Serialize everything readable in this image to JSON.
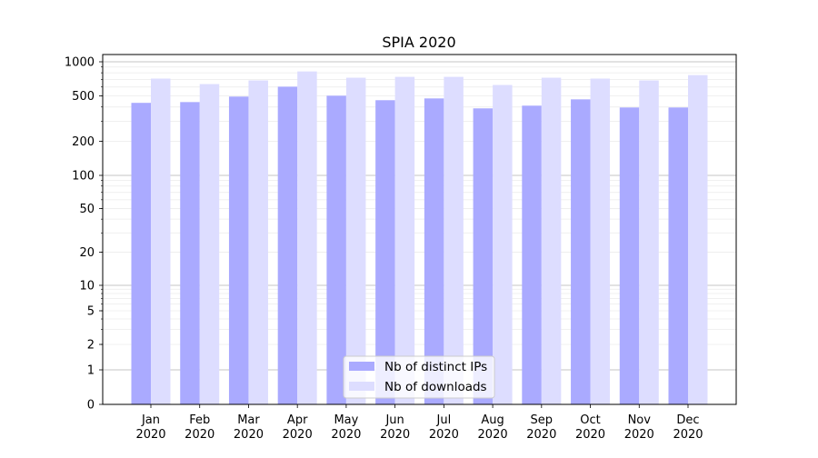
{
  "chart_data": {
    "type": "bar",
    "title": "SPIA 2020",
    "xlabel": "",
    "ylabel": "",
    "yscale": "symlog",
    "ylim": [
      0,
      1100
    ],
    "yticks": [
      0,
      1,
      2,
      5,
      10,
      20,
      50,
      100,
      200,
      500,
      1000
    ],
    "ytick_labels": [
      "0",
      "1",
      "2",
      "5",
      "10",
      "20",
      "50",
      "100",
      "200",
      "500",
      "1000"
    ],
    "grid": "both (major darker, minor light)",
    "legend_placement": "lower center",
    "categories": [
      "Jan\n2020",
      "Feb\n2020",
      "Mar\n2020",
      "Apr\n2020",
      "May\n2020",
      "Jun\n2020",
      "Jul\n2020",
      "Aug\n2020",
      "Sep\n2020",
      "Oct\n2020",
      "Nov\n2020",
      "Dec\n2020"
    ],
    "category_month": [
      "Jan",
      "Feb",
      "Mar",
      "Apr",
      "May",
      "Jun",
      "Jul",
      "Aug",
      "Sep",
      "Oct",
      "Nov",
      "Dec"
    ],
    "category_year": [
      "2020",
      "2020",
      "2020",
      "2020",
      "2020",
      "2020",
      "2020",
      "2020",
      "2020",
      "2020",
      "2020",
      "2020"
    ],
    "series": [
      {
        "name": "Nb of distinct IPs",
        "color": "#aaaaff",
        "values": [
          435,
          442,
          494,
          604,
          503,
          459,
          476,
          389,
          411,
          467,
          396,
          396
        ]
      },
      {
        "name": "Nb of downloads",
        "color": "#ddddff",
        "values": [
          711,
          637,
          685,
          822,
          724,
          737,
          737,
          625,
          724,
          711,
          685,
          764
        ]
      }
    ]
  }
}
